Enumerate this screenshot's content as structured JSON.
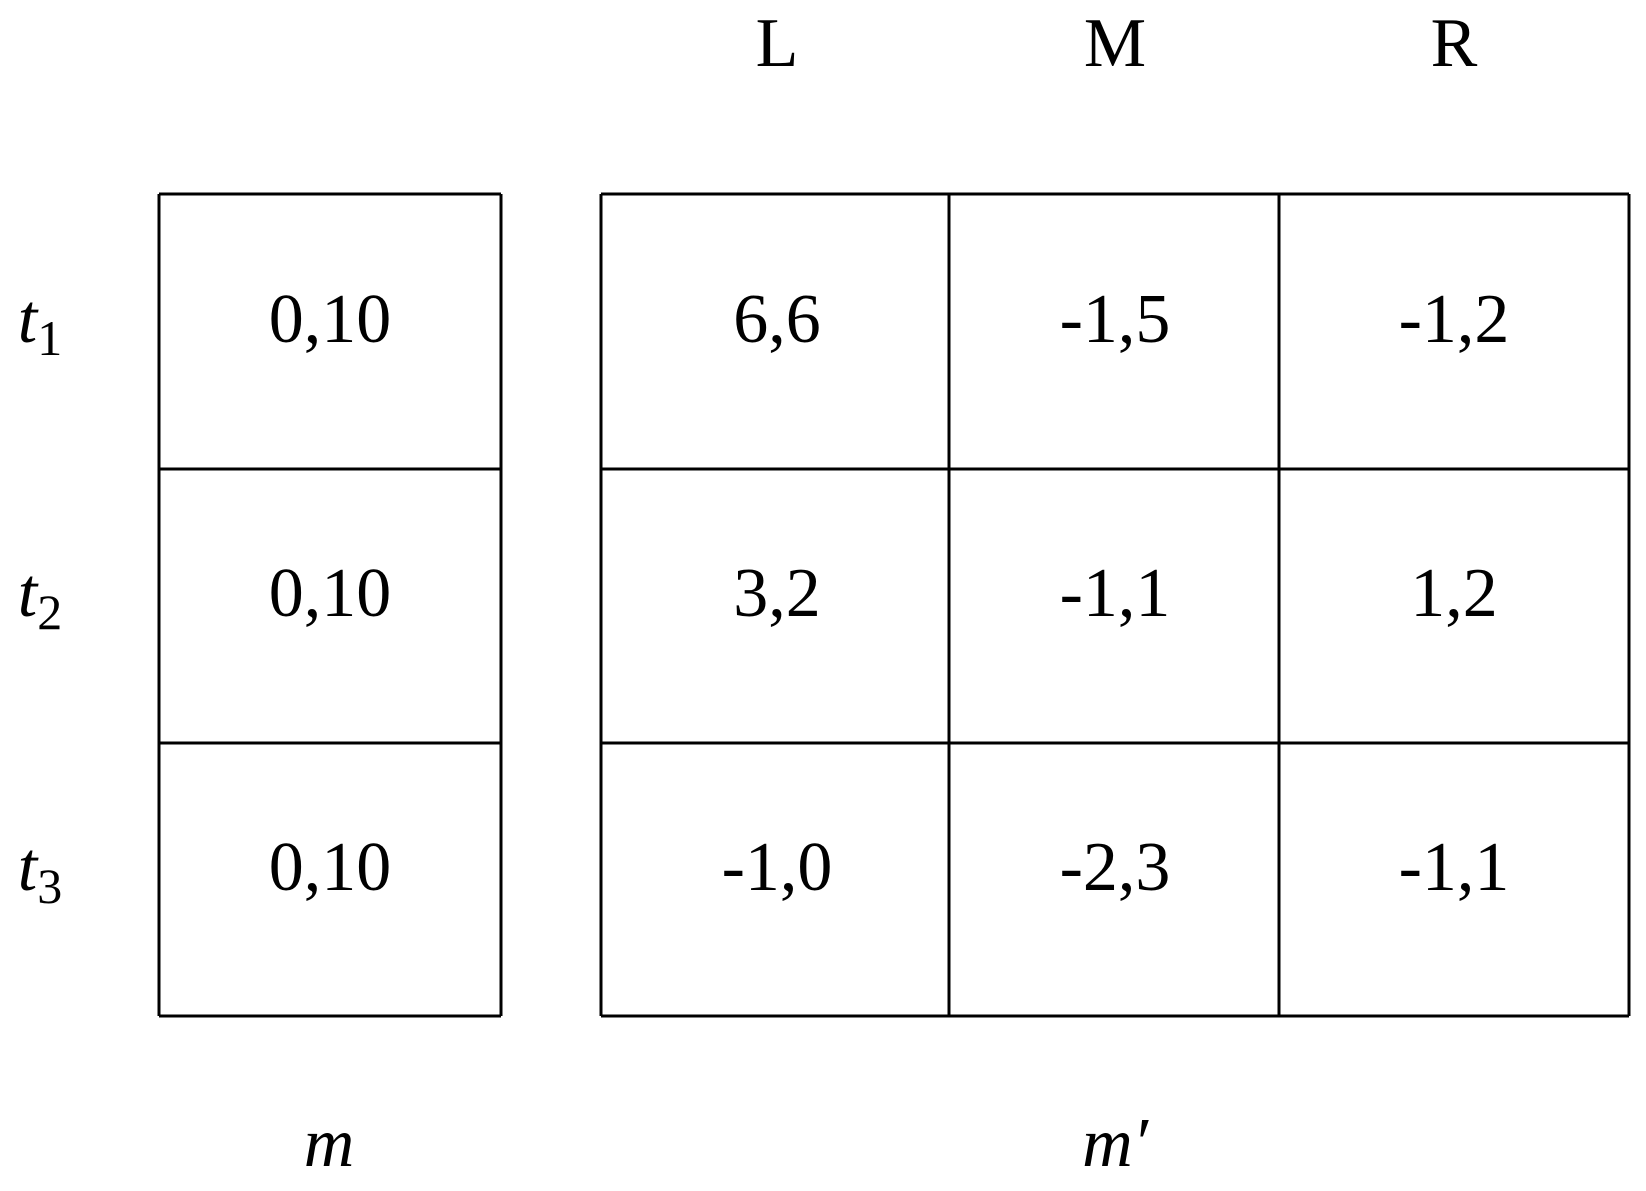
{
  "column_headers": [
    "L",
    "M",
    "R"
  ],
  "row_labels": [
    {
      "base": "t",
      "sub": "1"
    },
    {
      "base": "t",
      "sub": "2"
    },
    {
      "base": "t",
      "sub": "3"
    }
  ],
  "left_table": {
    "label": "m",
    "rows": [
      "0,10",
      "0,10",
      "0,10"
    ]
  },
  "right_table": {
    "label": "m′",
    "rows": [
      [
        "6,6",
        "-1,5",
        "-1,2"
      ],
      [
        "3,2",
        "-1,1",
        "1,2"
      ],
      [
        "-1,0",
        "-2,3",
        "-1,1"
      ]
    ]
  }
}
